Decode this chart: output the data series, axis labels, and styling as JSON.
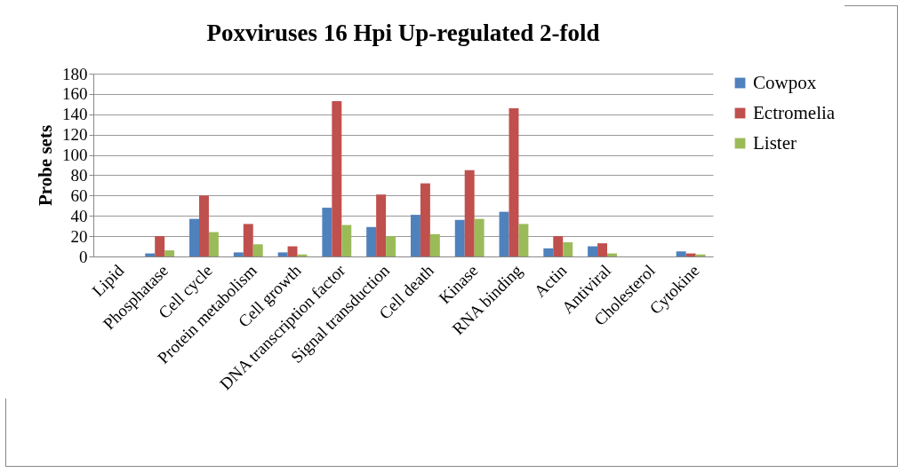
{
  "chart_data": {
    "type": "bar",
    "title": "Poxviruses 16 Hpi Up-regulated 2-fold",
    "ylabel": "Probe sets",
    "categories": [
      "Lipid",
      "Phosphatase",
      "Cell cycle",
      "Protein metabolism",
      "Cell growth",
      "DNA transcription factor",
      "Signal transduction",
      "Cell death",
      "Kinase",
      "RNA binding",
      "Actin",
      "Antiviral",
      "Cholesterol",
      "Cytokine"
    ],
    "series": [
      {
        "name": "Cowpox",
        "color": "#4f81bd",
        "values": [
          0,
          3,
          37,
          4,
          4,
          48,
          29,
          41,
          36,
          44,
          8,
          10,
          0,
          5
        ]
      },
      {
        "name": "Ectromelia",
        "color": "#c0504d",
        "values": [
          0,
          20,
          60,
          32,
          10,
          153,
          61,
          72,
          85,
          146,
          20,
          13,
          0,
          3
        ]
      },
      {
        "name": "Lister",
        "color": "#9bbb59",
        "values": [
          0,
          6,
          24,
          12,
          2,
          31,
          20,
          22,
          37,
          32,
          14,
          3,
          0,
          2
        ]
      }
    ],
    "ylim": [
      0,
      180
    ],
    "yticks": [
      0,
      20,
      40,
      60,
      80,
      100,
      120,
      140,
      160,
      180
    ],
    "grid": "y",
    "legend": "right"
  }
}
